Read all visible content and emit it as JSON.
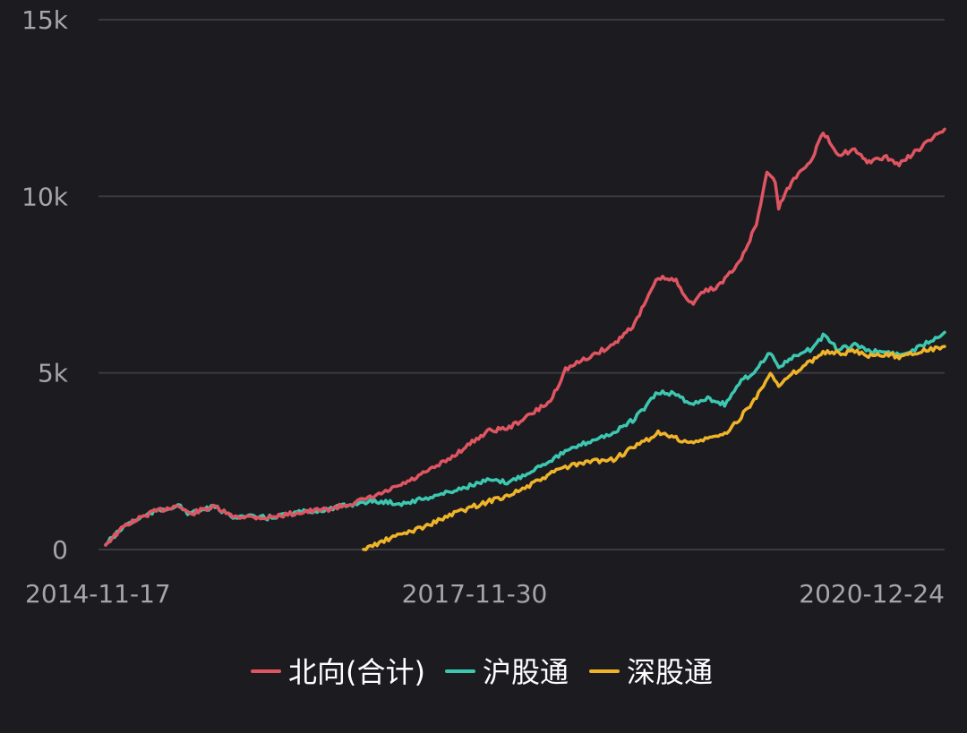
{
  "chart_data": {
    "type": "line",
    "title": "",
    "xlabel": "",
    "ylabel": "",
    "x_ticks": [
      "2014-11-17",
      "2017-11-30",
      "2020-12-24"
    ],
    "y_ticks": [
      "0",
      "5k",
      "10k",
      "15k"
    ],
    "y_tick_values": [
      0,
      5000,
      10000,
      15000
    ],
    "ylim": [
      0,
      15000
    ],
    "xlim": [
      "2014-11-17",
      "2021-07-20"
    ],
    "grid": "horizontal",
    "legend_position": "bottom-center",
    "series": [
      {
        "name": "北向(合计)",
        "color": "#e05562",
        "points": [
          [
            "2014-11-17",
            150
          ],
          [
            "2015-01-15",
            700
          ],
          [
            "2015-04-01",
            1050
          ],
          [
            "2015-06-15",
            1250
          ],
          [
            "2015-07-20",
            1000
          ],
          [
            "2015-09-01",
            1150
          ],
          [
            "2015-10-01",
            1200
          ],
          [
            "2015-11-15",
            950
          ],
          [
            "2016-03-01",
            900
          ],
          [
            "2016-06-01",
            1050
          ],
          [
            "2016-09-01",
            1150
          ],
          [
            "2016-12-05",
            1400
          ],
          [
            "2017-02-01",
            1600
          ],
          [
            "2017-05-01",
            2000
          ],
          [
            "2017-08-01",
            2500
          ],
          [
            "2017-11-30",
            3350
          ],
          [
            "2018-02-01",
            3450
          ],
          [
            "2018-04-01",
            3800
          ],
          [
            "2018-06-01",
            4200
          ],
          [
            "2018-07-15",
            5100
          ],
          [
            "2018-10-01",
            5500
          ],
          [
            "2018-12-01",
            5800
          ],
          [
            "2019-02-01",
            6400
          ],
          [
            "2019-04-10",
            7700
          ],
          [
            "2019-06-01",
            7600
          ],
          [
            "2019-07-15",
            6950
          ],
          [
            "2019-08-20",
            7300
          ],
          [
            "2019-10-01",
            7450
          ],
          [
            "2019-12-01",
            8100
          ],
          [
            "2020-01-20",
            9200
          ],
          [
            "2020-02-20",
            10700
          ],
          [
            "2020-03-15",
            10400
          ],
          [
            "2020-03-25",
            9700
          ],
          [
            "2020-05-01",
            10400
          ],
          [
            "2020-07-01",
            11100
          ],
          [
            "2020-08-01",
            11800
          ],
          [
            "2020-09-15",
            11200
          ],
          [
            "2020-11-01",
            11300
          ],
          [
            "2020-12-01",
            11000
          ],
          [
            "2020-12-24",
            11000
          ],
          [
            "2021-02-01",
            11100
          ],
          [
            "2021-03-10",
            10900
          ],
          [
            "2021-05-01",
            11300
          ],
          [
            "2021-07-20",
            11900
          ]
        ]
      },
      {
        "name": "沪股通",
        "color": "#3cc8b0",
        "points": [
          [
            "2014-11-17",
            150
          ],
          [
            "2015-01-15",
            700
          ],
          [
            "2015-04-01",
            1050
          ],
          [
            "2015-06-15",
            1250
          ],
          [
            "2015-07-20",
            1000
          ],
          [
            "2015-09-01",
            1150
          ],
          [
            "2015-10-01",
            1200
          ],
          [
            "2015-11-15",
            950
          ],
          [
            "2016-03-01",
            900
          ],
          [
            "2016-06-01",
            1050
          ],
          [
            "2016-09-01",
            1150
          ],
          [
            "2016-12-05",
            1350
          ],
          [
            "2017-02-01",
            1350
          ],
          [
            "2017-04-01",
            1300
          ],
          [
            "2017-08-01",
            1600
          ],
          [
            "2017-11-30",
            1950
          ],
          [
            "2018-02-01",
            1900
          ],
          [
            "2018-04-01",
            2200
          ],
          [
            "2018-07-01",
            2700
          ],
          [
            "2018-10-01",
            3100
          ],
          [
            "2018-12-01",
            3300
          ],
          [
            "2019-02-01",
            3700
          ],
          [
            "2019-04-10",
            4450
          ],
          [
            "2019-06-01",
            4400
          ],
          [
            "2019-07-15",
            4100
          ],
          [
            "2019-09-01",
            4300
          ],
          [
            "2019-10-20",
            4100
          ],
          [
            "2019-12-01",
            4700
          ],
          [
            "2020-01-20",
            5100
          ],
          [
            "2020-03-01",
            5600
          ],
          [
            "2020-03-25",
            5150
          ],
          [
            "2020-05-01",
            5400
          ],
          [
            "2020-07-01",
            5700
          ],
          [
            "2020-08-01",
            6050
          ],
          [
            "2020-09-15",
            5650
          ],
          [
            "2020-11-01",
            5800
          ],
          [
            "2020-12-24",
            5600
          ],
          [
            "2021-02-01",
            5600
          ],
          [
            "2021-03-10",
            5500
          ],
          [
            "2021-05-01",
            5700
          ],
          [
            "2021-07-20",
            6150
          ]
        ]
      },
      {
        "name": "深股通",
        "color": "#f0b429",
        "points": [
          [
            "2016-12-05",
            0
          ],
          [
            "2017-03-01",
            350
          ],
          [
            "2017-06-01",
            650
          ],
          [
            "2017-09-01",
            1050
          ],
          [
            "2017-11-30",
            1350
          ],
          [
            "2018-02-01",
            1550
          ],
          [
            "2018-04-01",
            1800
          ],
          [
            "2018-07-01",
            2300
          ],
          [
            "2018-10-01",
            2500
          ],
          [
            "2018-12-01",
            2550
          ],
          [
            "2019-02-01",
            2900
          ],
          [
            "2019-04-10",
            3300
          ],
          [
            "2019-06-01",
            3150
          ],
          [
            "2019-07-15",
            3000
          ],
          [
            "2019-09-01",
            3150
          ],
          [
            "2019-10-20",
            3250
          ],
          [
            "2019-12-01",
            3700
          ],
          [
            "2020-01-20",
            4300
          ],
          [
            "2020-03-01",
            5050
          ],
          [
            "2020-03-25",
            4600
          ],
          [
            "2020-05-01",
            4950
          ],
          [
            "2020-07-01",
            5350
          ],
          [
            "2020-08-01",
            5600
          ],
          [
            "2020-09-15",
            5550
          ],
          [
            "2020-11-01",
            5600
          ],
          [
            "2020-12-24",
            5450
          ],
          [
            "2021-02-01",
            5550
          ],
          [
            "2021-03-10",
            5450
          ],
          [
            "2021-05-01",
            5600
          ],
          [
            "2021-07-20",
            5750
          ]
        ]
      }
    ]
  }
}
